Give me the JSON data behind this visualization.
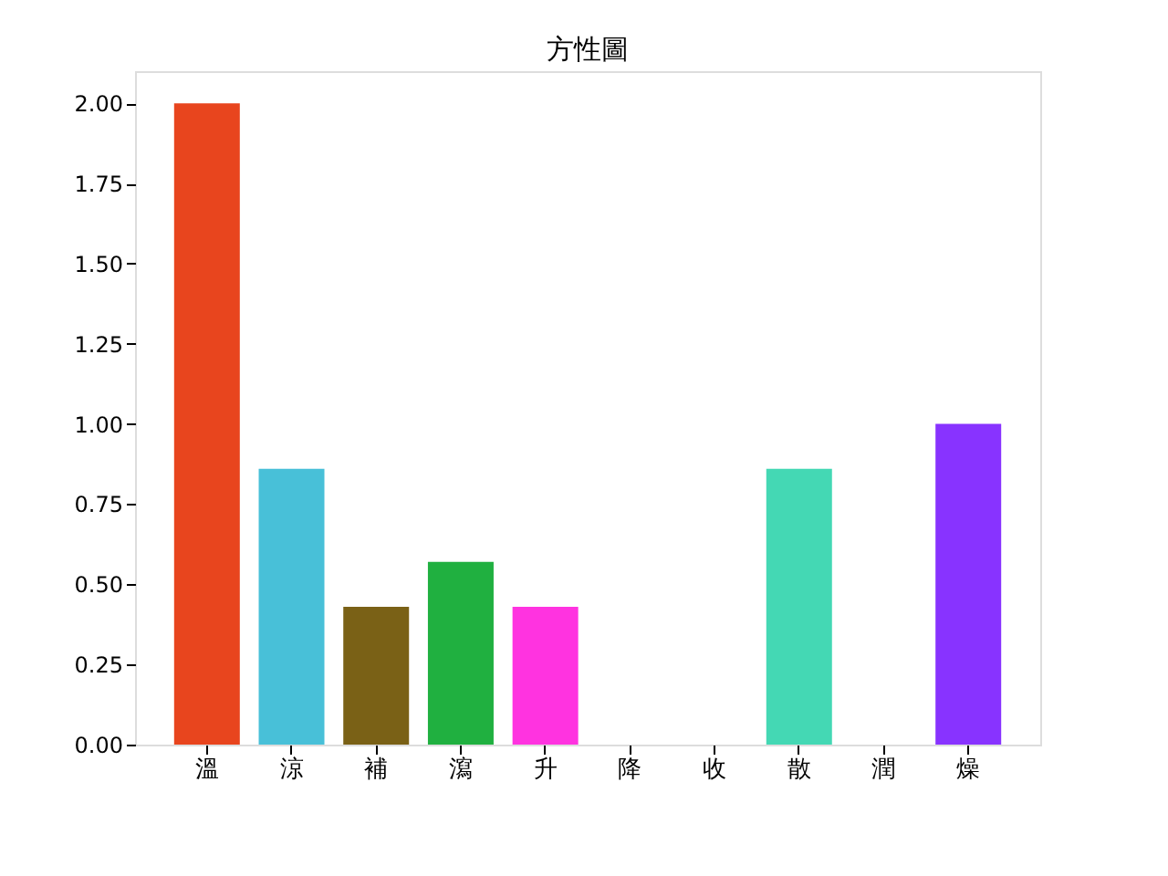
{
  "chart_data": {
    "type": "bar",
    "title": "方性圖",
    "categories": [
      "溫",
      "涼",
      "補",
      "瀉",
      "升",
      "降",
      "收",
      "散",
      "潤",
      "燥"
    ],
    "values": [
      2.0,
      0.86,
      0.43,
      0.57,
      0.43,
      0,
      0,
      0.86,
      0,
      1.0
    ],
    "colors": [
      "#e8451e",
      "#48c0d8",
      "#7a6116",
      "#20b040",
      "#ff33e0",
      "#888888",
      "#888888",
      "#44d8b4",
      "#888888",
      "#8833ff"
    ],
    "ylim": [
      0,
      2.1
    ],
    "yticks": [
      {
        "value": 0,
        "label": "0.00"
      },
      0.25,
      {
        "value": 0.5,
        "label": "0.50"
      },
      0.75,
      {
        "value": 1,
        "label": "1.00"
      },
      1.25,
      {
        "value": 1.5,
        "label": "1.50"
      },
      1.75,
      {
        "value": 2,
        "label": "2.00"
      }
    ],
    "grid": false
  }
}
